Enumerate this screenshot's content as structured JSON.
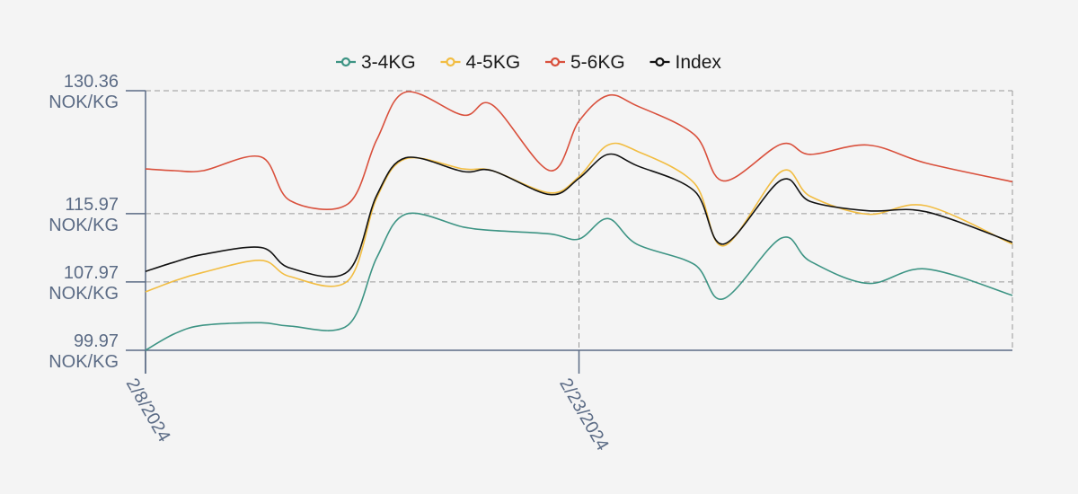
{
  "chart_data": {
    "type": "line",
    "title": "",
    "xlabel": "",
    "ylabel": "",
    "x_ticks": [
      "2/8/2024",
      "2/23/2024"
    ],
    "y_ticks": [
      {
        "value": 99.97,
        "line1": "99.97",
        "line2": "NOK/KG"
      },
      {
        "value": 107.97,
        "line1": "107.97",
        "line2": "NOK/KG"
      },
      {
        "value": 115.97,
        "line1": "115.97",
        "line2": "NOK/KG"
      },
      {
        "value": 130.36,
        "line1": "130.36",
        "line2": "NOK/KG"
      }
    ],
    "ylim": [
      99.97,
      130.36
    ],
    "xlim": [
      "2/8/2024",
      "3/9/2024"
    ],
    "grid": true,
    "legend_position": "top-center",
    "series": [
      {
        "name": "3-4KG",
        "color": "#3d9484",
        "points": [
          [
            "2/8/2024",
            99.97
          ],
          [
            "2/9/2024",
            101.9
          ],
          [
            "2/10/2024",
            102.9
          ],
          [
            "2/12/2024",
            103.2
          ],
          [
            "2/13/2024",
            102.8
          ],
          [
            "2/15/2024",
            102.9
          ],
          [
            "2/16/2024",
            110.8
          ],
          [
            "2/17/2024",
            115.9
          ],
          [
            "2/19/2024",
            114.4
          ],
          [
            "2/20/2024",
            114.0
          ],
          [
            "2/22/2024",
            113.6
          ],
          [
            "2/23/2024",
            113.0
          ],
          [
            "2/24/2024",
            115.4
          ],
          [
            "2/25/2024",
            112.4
          ],
          [
            "2/27/2024",
            110.0
          ],
          [
            "2/28/2024",
            106.0
          ],
          [
            "3/1/2024",
            113.1
          ],
          [
            "3/2/2024",
            110.4
          ],
          [
            "3/4/2024",
            107.8
          ],
          [
            "3/6/2024",
            109.5
          ],
          [
            "3/9/2024",
            106.4
          ]
        ]
      },
      {
        "name": "4-5KG",
        "color": "#f2bd42",
        "points": [
          [
            "2/8/2024",
            106.8
          ],
          [
            "2/9/2024",
            108.1
          ],
          [
            "2/10/2024",
            109.1
          ],
          [
            "2/12/2024",
            110.5
          ],
          [
            "2/13/2024",
            108.6
          ],
          [
            "2/15/2024",
            108.1
          ],
          [
            "2/16/2024",
            117.8
          ],
          [
            "2/17/2024",
            122.4
          ],
          [
            "2/19/2024",
            121.2
          ],
          [
            "2/20/2024",
            121.0
          ],
          [
            "2/22/2024",
            118.4
          ],
          [
            "2/23/2024",
            120.3
          ],
          [
            "2/24/2024",
            124.0
          ],
          [
            "2/25/2024",
            123.3
          ],
          [
            "2/27/2024",
            119.5
          ],
          [
            "2/28/2024",
            112.2
          ],
          [
            "3/1/2024",
            120.9
          ],
          [
            "3/2/2024",
            118.0
          ],
          [
            "3/4/2024",
            115.9
          ],
          [
            "3/6/2024",
            116.9
          ],
          [
            "3/9/2024",
            112.4
          ]
        ]
      },
      {
        "name": "5-6KG",
        "color": "#d9503c",
        "points": [
          [
            "2/8/2024",
            121.2
          ],
          [
            "2/9/2024",
            121.0
          ],
          [
            "2/10/2024",
            121.0
          ],
          [
            "2/12/2024",
            122.6
          ],
          [
            "2/13/2024",
            117.5
          ],
          [
            "2/15/2024",
            117.1
          ],
          [
            "2/16/2024",
            124.6
          ],
          [
            "2/17/2024",
            130.2
          ],
          [
            "2/19/2024",
            127.5
          ],
          [
            "2/20/2024",
            128.7
          ],
          [
            "2/22/2024",
            121.0
          ],
          [
            "2/23/2024",
            126.8
          ],
          [
            "2/24/2024",
            129.8
          ],
          [
            "2/25/2024",
            128.6
          ],
          [
            "2/27/2024",
            125.2
          ],
          [
            "2/28/2024",
            119.8
          ],
          [
            "3/1/2024",
            124.1
          ],
          [
            "3/2/2024",
            122.9
          ],
          [
            "3/4/2024",
            124.0
          ],
          [
            "3/6/2024",
            121.9
          ],
          [
            "3/9/2024",
            119.7
          ]
        ]
      },
      {
        "name": "Index",
        "color": "#111111",
        "points": [
          [
            "2/8/2024",
            109.2
          ],
          [
            "2/9/2024",
            110.3
          ],
          [
            "2/10/2024",
            111.2
          ],
          [
            "2/12/2024",
            112.0
          ],
          [
            "2/13/2024",
            109.6
          ],
          [
            "2/15/2024",
            109.2
          ],
          [
            "2/16/2024",
            118.1
          ],
          [
            "2/17/2024",
            122.5
          ],
          [
            "2/19/2024",
            120.9
          ],
          [
            "2/20/2024",
            121.0
          ],
          [
            "2/22/2024",
            118.2
          ],
          [
            "2/23/2024",
            120.1
          ],
          [
            "2/24/2024",
            122.9
          ],
          [
            "2/25/2024",
            121.6
          ],
          [
            "2/27/2024",
            118.6
          ],
          [
            "2/28/2024",
            112.4
          ],
          [
            "3/1/2024",
            119.9
          ],
          [
            "3/2/2024",
            117.4
          ],
          [
            "3/4/2024",
            116.3
          ],
          [
            "3/6/2024",
            116.2
          ],
          [
            "3/9/2024",
            112.6
          ]
        ]
      }
    ]
  }
}
